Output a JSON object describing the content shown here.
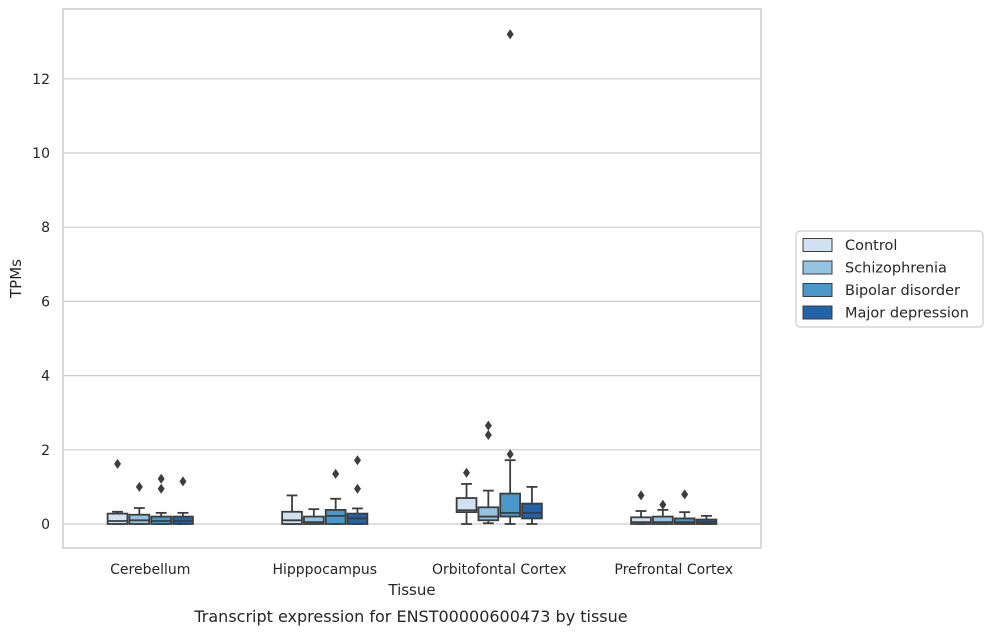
{
  "chart_data": {
    "type": "boxplot",
    "title": "Transcript expression for ENST00000600473 by tissue",
    "xlabel": "Tissue",
    "ylabel": "TPMs",
    "ylim": [
      -0.65,
      13.8
    ],
    "yticks": [
      0,
      2,
      4,
      6,
      8,
      10,
      12
    ],
    "ytick_labels": [
      "0",
      "2",
      "4",
      "6",
      "8",
      "10",
      "12"
    ],
    "grid": true,
    "legend_position": "right",
    "categories": [
      "Cerebellum",
      "Hipppocampus",
      "Orbitofontal Cortex",
      "Prefrontal Cortex"
    ],
    "series": [
      {
        "name": "Control",
        "color": "#d0e1f2",
        "boxes": [
          {
            "whislo": 0.0,
            "q1": 0.0,
            "med": 0.08,
            "q3": 0.28,
            "whishi": 0.33,
            "fliers": [
              1.62
            ]
          },
          {
            "whislo": 0.0,
            "q1": 0.0,
            "med": 0.1,
            "q3": 0.33,
            "whishi": 0.77,
            "fliers": []
          },
          {
            "whislo": 0.0,
            "q1": 0.32,
            "med": 0.37,
            "q3": 0.7,
            "whishi": 1.08,
            "fliers": [
              1.38
            ]
          },
          {
            "whislo": 0.0,
            "q1": 0.0,
            "med": 0.05,
            "q3": 0.18,
            "whishi": 0.35,
            "fliers": [
              0.77
            ]
          }
        ]
      },
      {
        "name": "Schizophrenia",
        "color": "#94c4df",
        "boxes": [
          {
            "whislo": 0.0,
            "q1": 0.0,
            "med": 0.1,
            "q3": 0.25,
            "whishi": 0.43,
            "fliers": [
              1.0
            ]
          },
          {
            "whislo": 0.0,
            "q1": 0.0,
            "med": 0.05,
            "q3": 0.2,
            "whishi": 0.4,
            "fliers": []
          },
          {
            "whislo": 0.02,
            "q1": 0.1,
            "med": 0.2,
            "q3": 0.45,
            "whishi": 0.9,
            "fliers": [
              2.4,
              2.65
            ]
          },
          {
            "whislo": 0.0,
            "q1": 0.0,
            "med": 0.05,
            "q3": 0.2,
            "whishi": 0.38,
            "fliers": [
              0.52
            ]
          }
        ]
      },
      {
        "name": "Bipolar disorder",
        "color": "#4a98c9",
        "boxes": [
          {
            "whislo": 0.0,
            "q1": 0.0,
            "med": 0.08,
            "q3": 0.2,
            "whishi": 0.3,
            "fliers": [
              0.95,
              1.22
            ]
          },
          {
            "whislo": 0.0,
            "q1": 0.0,
            "med": 0.22,
            "q3": 0.38,
            "whishi": 0.68,
            "fliers": [
              1.35
            ]
          },
          {
            "whislo": 0.0,
            "q1": 0.2,
            "med": 0.3,
            "q3": 0.82,
            "whishi": 1.72,
            "fliers": [
              1.88,
              13.2
            ]
          },
          {
            "whislo": 0.0,
            "q1": 0.0,
            "med": 0.05,
            "q3": 0.15,
            "whishi": 0.32,
            "fliers": [
              0.8
            ]
          }
        ]
      },
      {
        "name": "Major depression",
        "color": "#2164ab",
        "boxes": [
          {
            "whislo": 0.0,
            "q1": 0.0,
            "med": 0.08,
            "q3": 0.2,
            "whishi": 0.3,
            "fliers": [
              1.15
            ]
          },
          {
            "whislo": 0.0,
            "q1": 0.0,
            "med": 0.15,
            "q3": 0.28,
            "whishi": 0.42,
            "fliers": [
              0.95,
              1.72
            ]
          },
          {
            "whislo": 0.0,
            "q1": 0.15,
            "med": 0.3,
            "q3": 0.55,
            "whishi": 1.0,
            "fliers": []
          },
          {
            "whislo": 0.0,
            "q1": 0.0,
            "med": 0.05,
            "q3": 0.12,
            "whishi": 0.22,
            "fliers": []
          }
        ]
      }
    ]
  }
}
